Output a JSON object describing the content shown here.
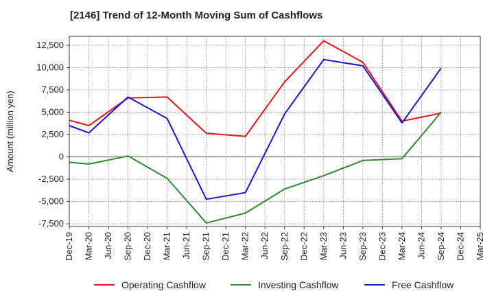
{
  "chart_data": {
    "type": "line",
    "title": "[2146]  Trend of 12-Month Moving Sum of Cashflows",
    "ylabel": "Amount (million yen)",
    "xlabel": "",
    "x": [
      "Dec-19",
      "Mar-20",
      "Jun-20",
      "Sep-20",
      "Dec-20",
      "Mar-21",
      "Jun-21",
      "Sep-21",
      "Dec-21",
      "Mar-22",
      "Jun-22",
      "Sep-22",
      "Dec-22",
      "Mar-23",
      "Jun-23",
      "Sep-23",
      "Dec-23",
      "Mar-24",
      "Jun-24",
      "Sep-24",
      "Dec-24",
      "Mar-25"
    ],
    "yticks": [
      -7500,
      -5000,
      -2500,
      0,
      2500,
      5000,
      7500,
      10000,
      12500
    ],
    "ytick_labels": [
      "-7,500",
      "-5,000",
      "-2,500",
      "0",
      "2,500",
      "5,000",
      "7,500",
      "10,000",
      "12,500"
    ],
    "ylim": [
      -7800,
      13500
    ],
    "grid": true,
    "legend_position": "bottom",
    "series": [
      {
        "name": "Operating Cashflow",
        "color": "#e81313",
        "points": [
          [
            "Dec-19",
            4100
          ],
          [
            "Mar-20",
            3500
          ],
          [
            "Sep-20",
            6600
          ],
          [
            "Mar-21",
            6700
          ],
          [
            "Sep-21",
            2650
          ],
          [
            "Mar-22",
            2300
          ],
          [
            "Sep-22",
            8400
          ],
          [
            "Mar-23",
            13000
          ],
          [
            "Sep-23",
            10600
          ],
          [
            "Mar-24",
            4000
          ],
          [
            "Sep-24",
            4900
          ]
        ]
      },
      {
        "name": "Investing Cashflow",
        "color": "#2d8a2d",
        "points": [
          [
            "Dec-19",
            -600
          ],
          [
            "Mar-20",
            -800
          ],
          [
            "Sep-20",
            100
          ],
          [
            "Mar-21",
            -2400
          ],
          [
            "Sep-21",
            -7400
          ],
          [
            "Mar-22",
            -6300
          ],
          [
            "Sep-22",
            -3600
          ],
          [
            "Mar-23",
            -2100
          ],
          [
            "Sep-23",
            -400
          ],
          [
            "Mar-24",
            -200
          ],
          [
            "Sep-24",
            5000
          ]
        ]
      },
      {
        "name": "Free Cashflow",
        "color": "#1414d2",
        "points": [
          [
            "Dec-19",
            3500
          ],
          [
            "Mar-20",
            2700
          ],
          [
            "Sep-20",
            6700
          ],
          [
            "Mar-21",
            4300
          ],
          [
            "Sep-21",
            -4750
          ],
          [
            "Mar-22",
            -4000
          ],
          [
            "Sep-22",
            4800
          ],
          [
            "Mar-23",
            10900
          ],
          [
            "Sep-23",
            10200
          ],
          [
            "Mar-24",
            3800
          ],
          [
            "Sep-24",
            9950
          ]
        ]
      }
    ]
  }
}
